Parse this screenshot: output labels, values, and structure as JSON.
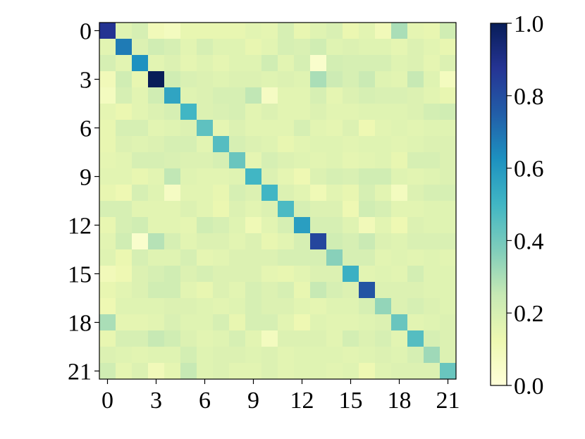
{
  "chart_data": {
    "type": "heatmap",
    "title": "",
    "xlabel": "",
    "ylabel": "",
    "size": 22,
    "x_ticks": [
      0,
      3,
      6,
      9,
      12,
      15,
      18,
      21
    ],
    "y_ticks": [
      0,
      3,
      6,
      9,
      12,
      15,
      18,
      21
    ],
    "colorbar": {
      "colormap": "YlGnBu",
      "vmin": 0.0,
      "vmax": 1.0,
      "ticks": [
        "0.0",
        "0.2",
        "0.4",
        "0.6",
        "0.8",
        "1.0"
      ],
      "stops": [
        "#ffffd9",
        "#edf8b1",
        "#c7e9b4",
        "#7fcdbb",
        "#41b6c4",
        "#1d91c0",
        "#225ea8",
        "#253494",
        "#081d58"
      ]
    },
    "diagonal": [
      0.88,
      0.68,
      0.62,
      1.0,
      0.56,
      0.5,
      0.44,
      0.46,
      0.42,
      0.5,
      0.5,
      0.48,
      0.58,
      0.82,
      0.36,
      0.52,
      0.78,
      0.34,
      0.42,
      0.46,
      0.32,
      0.42
    ],
    "values": [
      [
        0.88,
        0.17,
        0.2,
        0.1,
        0.08,
        0.14,
        0.14,
        0.14,
        0.14,
        0.16,
        0.15,
        0.2,
        0.14,
        0.17,
        0.19,
        0.13,
        0.16,
        0.1,
        0.3,
        0.15,
        0.14,
        0.22
      ],
      [
        0.16,
        0.68,
        0.18,
        0.22,
        0.2,
        0.16,
        0.2,
        0.17,
        0.17,
        0.14,
        0.16,
        0.2,
        0.19,
        0.22,
        0.17,
        0.18,
        0.17,
        0.17,
        0.15,
        0.18,
        0.16,
        0.14
      ],
      [
        0.2,
        0.16,
        0.62,
        0.16,
        0.18,
        0.15,
        0.17,
        0.15,
        0.17,
        0.17,
        0.22,
        0.16,
        0.2,
        0.04,
        0.21,
        0.2,
        0.2,
        0.2,
        0.17,
        0.18,
        0.15,
        0.18
      ],
      [
        0.1,
        0.22,
        0.14,
        1.0,
        0.22,
        0.19,
        0.18,
        0.17,
        0.18,
        0.18,
        0.17,
        0.18,
        0.17,
        0.3,
        0.23,
        0.2,
        0.24,
        0.17,
        0.16,
        0.25,
        0.17,
        0.08
      ],
      [
        0.08,
        0.2,
        0.16,
        0.22,
        0.56,
        0.17,
        0.18,
        0.2,
        0.2,
        0.26,
        0.07,
        0.16,
        0.16,
        0.2,
        0.15,
        0.18,
        0.2,
        0.19,
        0.19,
        0.18,
        0.16,
        0.14
      ],
      [
        0.15,
        0.13,
        0.16,
        0.18,
        0.2,
        0.5,
        0.18,
        0.19,
        0.2,
        0.16,
        0.18,
        0.16,
        0.16,
        0.18,
        0.16,
        0.16,
        0.17,
        0.17,
        0.17,
        0.18,
        0.21,
        0.22
      ],
      [
        0.14,
        0.2,
        0.2,
        0.16,
        0.17,
        0.18,
        0.44,
        0.15,
        0.18,
        0.16,
        0.16,
        0.16,
        0.2,
        0.16,
        0.15,
        0.18,
        0.12,
        0.16,
        0.17,
        0.16,
        0.17,
        0.17
      ],
      [
        0.14,
        0.18,
        0.17,
        0.18,
        0.2,
        0.2,
        0.16,
        0.46,
        0.2,
        0.18,
        0.17,
        0.14,
        0.16,
        0.17,
        0.17,
        0.16,
        0.17,
        0.17,
        0.16,
        0.17,
        0.18,
        0.18
      ],
      [
        0.15,
        0.16,
        0.2,
        0.2,
        0.19,
        0.18,
        0.18,
        0.2,
        0.42,
        0.15,
        0.2,
        0.18,
        0.17,
        0.16,
        0.17,
        0.15,
        0.16,
        0.17,
        0.14,
        0.2,
        0.2,
        0.18
      ],
      [
        0.16,
        0.16,
        0.14,
        0.16,
        0.26,
        0.17,
        0.16,
        0.16,
        0.17,
        0.5,
        0.18,
        0.15,
        0.12,
        0.18,
        0.2,
        0.19,
        0.22,
        0.22,
        0.17,
        0.16,
        0.17,
        0.18
      ],
      [
        0.14,
        0.12,
        0.2,
        0.17,
        0.07,
        0.16,
        0.16,
        0.14,
        0.2,
        0.18,
        0.5,
        0.18,
        0.16,
        0.11,
        0.16,
        0.14,
        0.2,
        0.16,
        0.08,
        0.18,
        0.2,
        0.2
      ],
      [
        0.2,
        0.2,
        0.16,
        0.16,
        0.16,
        0.18,
        0.16,
        0.13,
        0.18,
        0.16,
        0.18,
        0.48,
        0.2,
        0.18,
        0.18,
        0.12,
        0.22,
        0.2,
        0.16,
        0.16,
        0.17,
        0.17
      ],
      [
        0.14,
        0.2,
        0.22,
        0.16,
        0.16,
        0.15,
        0.22,
        0.2,
        0.17,
        0.11,
        0.16,
        0.2,
        0.58,
        0.2,
        0.2,
        0.17,
        0.1,
        0.16,
        0.12,
        0.18,
        0.17,
        0.17
      ],
      [
        0.16,
        0.22,
        0.04,
        0.28,
        0.2,
        0.16,
        0.18,
        0.18,
        0.16,
        0.18,
        0.14,
        0.16,
        0.2,
        0.82,
        0.22,
        0.2,
        0.24,
        0.18,
        0.17,
        0.19,
        0.19,
        0.19
      ],
      [
        0.17,
        0.13,
        0.2,
        0.17,
        0.17,
        0.2,
        0.15,
        0.16,
        0.18,
        0.18,
        0.18,
        0.2,
        0.2,
        0.2,
        0.36,
        0.2,
        0.2,
        0.16,
        0.17,
        0.16,
        0.17,
        0.16
      ],
      [
        0.1,
        0.12,
        0.18,
        0.2,
        0.22,
        0.18,
        0.2,
        0.18,
        0.18,
        0.18,
        0.15,
        0.14,
        0.16,
        0.18,
        0.18,
        0.52,
        0.16,
        0.17,
        0.16,
        0.21,
        0.17,
        0.17
      ],
      [
        0.14,
        0.16,
        0.18,
        0.22,
        0.22,
        0.16,
        0.14,
        0.18,
        0.16,
        0.2,
        0.18,
        0.2,
        0.14,
        0.25,
        0.2,
        0.18,
        0.78,
        0.18,
        0.18,
        0.18,
        0.17,
        0.17
      ],
      [
        0.12,
        0.17,
        0.17,
        0.17,
        0.18,
        0.18,
        0.17,
        0.16,
        0.17,
        0.2,
        0.18,
        0.18,
        0.16,
        0.15,
        0.17,
        0.17,
        0.2,
        0.34,
        0.18,
        0.2,
        0.18,
        0.17
      ],
      [
        0.3,
        0.15,
        0.15,
        0.16,
        0.19,
        0.17,
        0.17,
        0.2,
        0.14,
        0.2,
        0.2,
        0.16,
        0.12,
        0.17,
        0.16,
        0.16,
        0.17,
        0.18,
        0.42,
        0.16,
        0.17,
        0.18
      ],
      [
        0.14,
        0.2,
        0.2,
        0.25,
        0.22,
        0.18,
        0.16,
        0.17,
        0.2,
        0.16,
        0.08,
        0.18,
        0.18,
        0.18,
        0.16,
        0.21,
        0.18,
        0.2,
        0.16,
        0.46,
        0.2,
        0.18
      ],
      [
        0.18,
        0.17,
        0.16,
        0.17,
        0.17,
        0.21,
        0.17,
        0.18,
        0.18,
        0.17,
        0.18,
        0.16,
        0.17,
        0.17,
        0.17,
        0.16,
        0.17,
        0.18,
        0.17,
        0.2,
        0.32,
        0.18
      ],
      [
        0.22,
        0.15,
        0.18,
        0.1,
        0.15,
        0.25,
        0.17,
        0.18,
        0.16,
        0.16,
        0.18,
        0.16,
        0.17,
        0.17,
        0.16,
        0.17,
        0.12,
        0.17,
        0.18,
        0.18,
        0.18,
        0.42
      ]
    ]
  }
}
